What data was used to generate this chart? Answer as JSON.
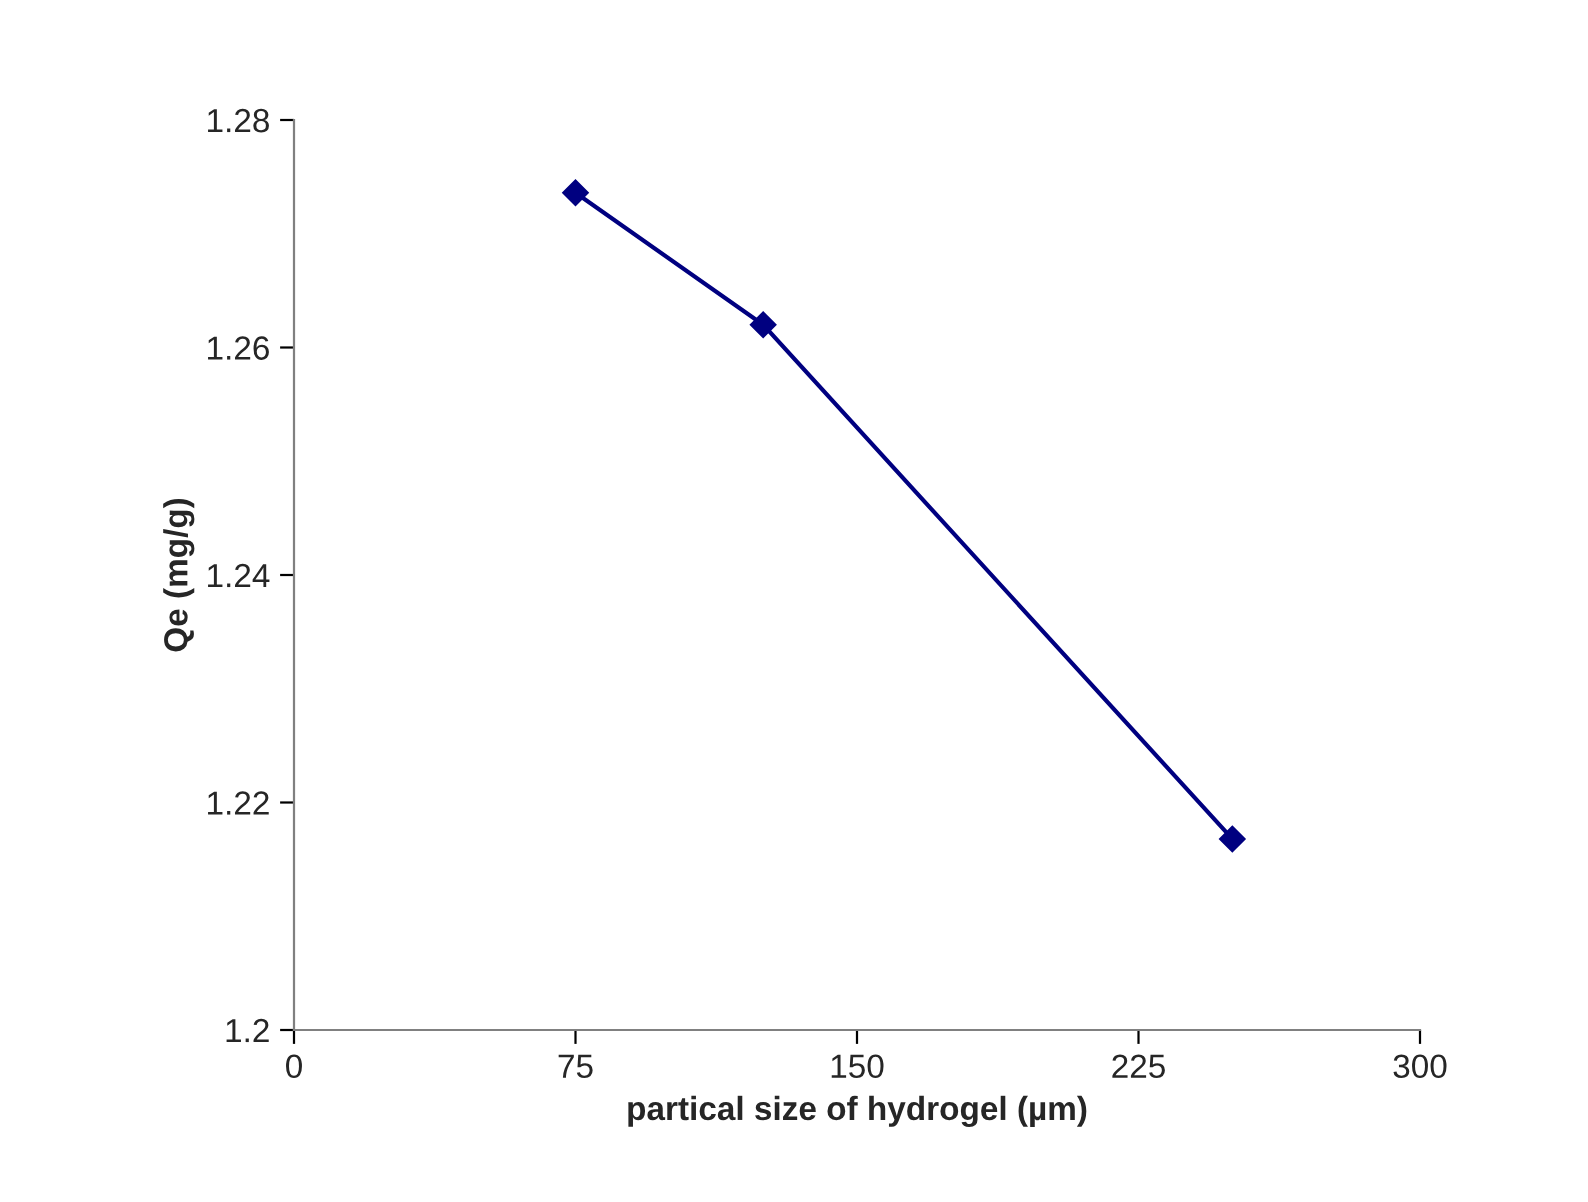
{
  "chart_data": {
    "type": "line",
    "xlabel": "partical size of hydrogel (µm)",
    "ylabel": "Qe (mg/g)",
    "x": [
      75,
      125,
      250
    ],
    "series": [
      {
        "color": "#000080",
        "values": [
          1.2736,
          1.262,
          1.2168
        ]
      }
    ],
    "xlim": [
      0,
      300
    ],
    "xticks": [
      0,
      75,
      150,
      225,
      300
    ],
    "ylim": [
      1.2,
      1.28
    ],
    "yticks": [
      1.2,
      1.22,
      1.24,
      1.26,
      1.28
    ],
    "marker": "diamond",
    "line_style": "solid",
    "grid": false,
    "legend": false
  }
}
